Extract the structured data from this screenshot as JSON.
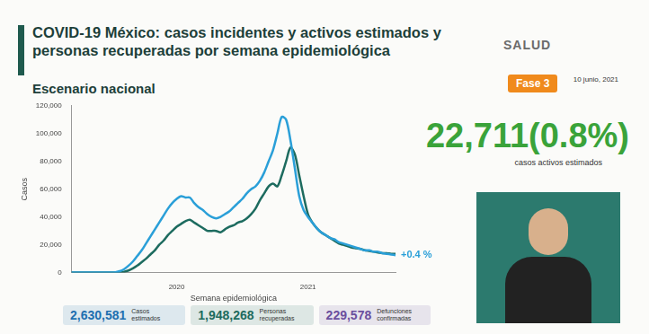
{
  "page": {
    "header": {
      "title": "COVID-19 México: casos incidentes y activos estimados y personas recuperadas por semana epidemiológica",
      "subtitle": "Escenario nacional",
      "logo_text": "SALUD",
      "phase": "Fase 3",
      "date": "10 junio, 2021"
    },
    "headline": {
      "value": "22,711(0.8%)",
      "caption": "casos activos estimados"
    },
    "totals": [
      {
        "value": "2,630,581",
        "label": "Casos estimados",
        "color": "#1e6fb0"
      },
      {
        "value": "1,948,268",
        "label": "Personas recuperadas",
        "color": "#1d6b5f"
      },
      {
        "value": "229,578",
        "label": "Defunciones confirmadas",
        "color": "#6b4f9e"
      }
    ]
  },
  "chart_data": {
    "type": "line",
    "x_label": "Semana epidemiológica",
    "y_label": "Casos",
    "annotations": [
      "+0.4 %"
    ],
    "categories": [
      null,
      null,
      null,
      null,
      null,
      null,
      null,
      null,
      null,
      null,
      null,
      null,
      null,
      null,
      null,
      null,
      null,
      null,
      null,
      null,
      null,
      null,
      null,
      null,
      "2020",
      null,
      null,
      null,
      null,
      null,
      null,
      null,
      null,
      null,
      null,
      null,
      null,
      null,
      null,
      null,
      null,
      null,
      null,
      null,
      null,
      null,
      null,
      null,
      null,
      null,
      null,
      null,
      null,
      null,
      "2021",
      null,
      null,
      null,
      null,
      null,
      null,
      null,
      null,
      null,
      null,
      null,
      null,
      null,
      null,
      null,
      null,
      null,
      null,
      null,
      null
    ],
    "series": [
      {
        "color": "#2a9fd8",
        "values": [
          0,
          0,
          0,
          0,
          0,
          0,
          0,
          0,
          0,
          0,
          300,
          1000,
          2500,
          5000,
          8000,
          12000,
          16000,
          21000,
          26000,
          31000,
          36000,
          41000,
          46000,
          50000,
          53000,
          55000,
          54000,
          54000,
          50000,
          47000,
          45000,
          42000,
          40000,
          39000,
          40000,
          42000,
          44000,
          47000,
          50000,
          53000,
          57000,
          60000,
          62000,
          66000,
          72000,
          80000,
          88000,
          100000,
          112000,
          110000,
          95000,
          75000,
          55000,
          45000,
          40000,
          36000,
          32000,
          29000,
          27000,
          25000,
          24000,
          22000,
          21000,
          20000,
          19000,
          18000,
          17000,
          16000,
          16000,
          15000,
          15000,
          14000,
          13500,
          13000,
          12500
        ]
      },
      {
        "color": "#1d6b5f",
        "values": [
          0,
          0,
          0,
          0,
          0,
          0,
          0,
          0,
          0,
          0,
          0,
          0,
          500,
          1500,
          3000,
          5000,
          7500,
          10000,
          13000,
          16000,
          20000,
          23000,
          27000,
          30000,
          33000,
          35000,
          37000,
          38000,
          36000,
          34000,
          32000,
          30000,
          30000,
          30000,
          29000,
          31000,
          33000,
          34000,
          36000,
          37000,
          39000,
          42000,
          46000,
          52000,
          57000,
          62000,
          64000,
          62000,
          70000,
          80000,
          90000,
          85000,
          70000,
          55000,
          42000,
          36000,
          32000,
          29000,
          27000,
          25000,
          23000,
          21000,
          20000,
          19000,
          18000,
          17500,
          17000,
          16000,
          15500,
          15000,
          14500,
          14000,
          14000,
          13500,
          13500
        ]
      }
    ],
    "ylim": [
      0,
      120000
    ],
    "yticks": [
      0,
      {
        "value": 20000,
        "label": "20,000"
      },
      {
        "value": 40000,
        "label": "40,000"
      },
      {
        "value": 60000,
        "label": "60,000"
      },
      {
        "value": 80000,
        "label": "80,000"
      },
      {
        "value": 100000,
        "label": "100,000"
      },
      {
        "value": 120000,
        "label": "120,000"
      }
    ],
    "grid": false,
    "legend": "none"
  }
}
